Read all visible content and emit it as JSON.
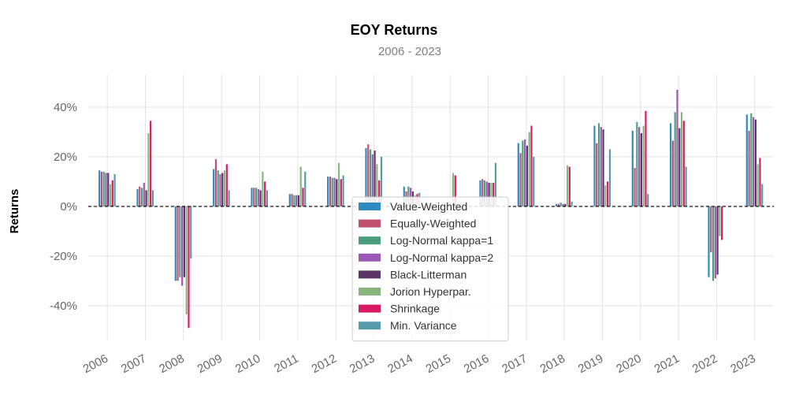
{
  "chart_data": {
    "type": "bar",
    "title": "EOY Returns",
    "subtitle": "2006 - 2023",
    "xlabel": "",
    "ylabel": "Returns",
    "ylim": [
      -0.54,
      0.53
    ],
    "yticks": [
      -0.4,
      -0.2,
      0.0,
      0.2,
      0.4
    ],
    "ytick_labels": [
      "-40%",
      "-20%",
      "0%",
      "20%",
      "40%"
    ],
    "grid": true,
    "legend_position": "bottom-center",
    "categories": [
      "2006",
      "2007",
      "2008",
      "2009",
      "2010",
      "2011",
      "2012",
      "2013",
      "2014",
      "2015",
      "2016",
      "2017",
      "2018",
      "2019",
      "2020",
      "2021",
      "2022",
      "2023"
    ],
    "series": [
      {
        "name": "Value-Weighted",
        "color": "#2e8bc0",
        "values": [
          0.145,
          0.07,
          -0.3,
          0.15,
          0.075,
          0.05,
          0.12,
          0.235,
          0.08,
          0.0,
          0.105,
          0.255,
          0.01,
          0.325,
          0.305,
          0.335,
          -0.285,
          0.37
        ]
      },
      {
        "name": "Equally-Weighted",
        "color": "#c0506e",
        "values": [
          0.14,
          0.08,
          -0.3,
          0.19,
          0.075,
          0.05,
          0.12,
          0.25,
          0.06,
          0.0,
          0.11,
          0.215,
          0.01,
          0.255,
          0.155,
          0.265,
          -0.185,
          0.305
        ]
      },
      {
        "name": "Log-Normal kappa=1",
        "color": "#4a9e7c",
        "values": [
          0.14,
          0.075,
          -0.285,
          0.145,
          0.075,
          0.045,
          0.115,
          0.23,
          0.08,
          0.0,
          0.105,
          0.265,
          0.015,
          0.335,
          0.34,
          0.38,
          -0.3,
          0.375
        ]
      },
      {
        "name": "Log-Normal kappa=2",
        "color": "#9b59b6",
        "values": [
          0.135,
          0.095,
          -0.32,
          0.13,
          0.07,
          0.045,
          0.115,
          0.21,
          0.075,
          0.0,
          0.1,
          0.27,
          0.01,
          0.32,
          0.32,
          0.47,
          -0.29,
          0.36
        ]
      },
      {
        "name": "Black-Litterman",
        "color": "#5b3565",
        "values": [
          0.135,
          0.065,
          -0.285,
          0.135,
          0.065,
          0.045,
          0.11,
          0.225,
          0.06,
          0.0,
          0.095,
          0.245,
          0.01,
          0.31,
          0.295,
          0.315,
          -0.275,
          0.35
        ]
      },
      {
        "name": "Jorion Hyperpar.",
        "color": "#88b57e",
        "values": [
          0.09,
          0.295,
          -0.435,
          0.145,
          0.14,
          0.16,
          0.175,
          0.17,
          0.045,
          0.135,
          0.095,
          0.3,
          0.165,
          0.085,
          0.325,
          0.38,
          -0.12,
          0.17
        ]
      },
      {
        "name": "Shrinkage",
        "color": "#d81b60",
        "values": [
          0.105,
          0.345,
          -0.49,
          0.17,
          0.1,
          0.075,
          0.11,
          0.105,
          0.05,
          0.125,
          0.095,
          0.325,
          0.16,
          0.1,
          0.385,
          0.345,
          -0.135,
          0.195
        ]
      },
      {
        "name": "Min. Variance",
        "color": "#5599aa",
        "values": [
          0.13,
          0.065,
          -0.21,
          0.065,
          0.065,
          0.14,
          0.125,
          0.2,
          0.055,
          0.0,
          0.175,
          0.2,
          0.02,
          0.23,
          0.05,
          0.16,
          0.0,
          0.09
        ]
      }
    ]
  }
}
